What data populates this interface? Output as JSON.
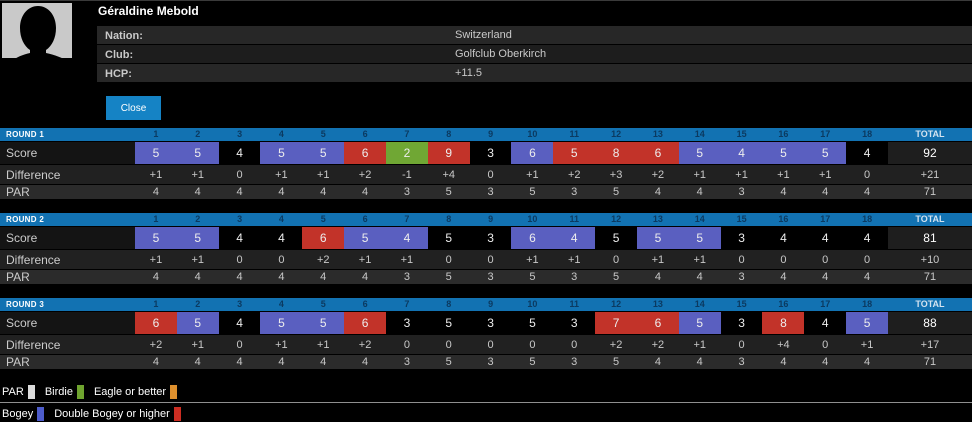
{
  "player": {
    "name": "Géraldine Mebold",
    "info": [
      {
        "label": "Nation:",
        "value": "Switzerland"
      },
      {
        "label": "Club:",
        "value": "Golfclub Oberkirch"
      },
      {
        "label": "HCP:",
        "value": "+11.5"
      }
    ],
    "close_button": "Close"
  },
  "scorecard": {
    "holes": [
      "1",
      "2",
      "3",
      "4",
      "5",
      "6",
      "7",
      "8",
      "9",
      "10",
      "11",
      "12",
      "13",
      "14",
      "15",
      "16",
      "17",
      "18"
    ],
    "total_header": "TOTAL",
    "row_labels": {
      "score": "Score",
      "difference": "Difference",
      "par": "PAR"
    },
    "rounds": [
      {
        "name": "ROUND 1",
        "scores": [
          5,
          5,
          4,
          5,
          5,
          6,
          2,
          9,
          3,
          6,
          5,
          8,
          6,
          5,
          4,
          5,
          5,
          4
        ],
        "differences": [
          "+1",
          "+1",
          "0",
          "+1",
          "+1",
          "+2",
          "-1",
          "+4",
          "0",
          "+1",
          "+2",
          "+3",
          "+2",
          "+1",
          "+1",
          "+1",
          "+1",
          "0"
        ],
        "pars": [
          4,
          4,
          4,
          4,
          4,
          4,
          3,
          5,
          3,
          5,
          3,
          5,
          4,
          4,
          3,
          4,
          4,
          4
        ],
        "total_score": "92",
        "total_difference": "+21",
        "total_par": "71"
      },
      {
        "name": "ROUND 2",
        "scores": [
          5,
          5,
          4,
          4,
          6,
          5,
          4,
          5,
          3,
          6,
          4,
          5,
          5,
          5,
          3,
          4,
          4,
          4
        ],
        "differences": [
          "+1",
          "+1",
          "0",
          "0",
          "+2",
          "+1",
          "+1",
          "0",
          "0",
          "+1",
          "+1",
          "0",
          "+1",
          "+1",
          "0",
          "0",
          "0",
          "0"
        ],
        "pars": [
          4,
          4,
          4,
          4,
          4,
          4,
          3,
          5,
          3,
          5,
          3,
          5,
          4,
          4,
          3,
          4,
          4,
          4
        ],
        "total_score": "81",
        "total_difference": "+10",
        "total_par": "71"
      },
      {
        "name": "ROUND 3",
        "scores": [
          6,
          5,
          4,
          5,
          5,
          6,
          3,
          5,
          3,
          5,
          3,
          7,
          6,
          5,
          3,
          8,
          4,
          5
        ],
        "differences": [
          "+2",
          "+1",
          "0",
          "+1",
          "+1",
          "+2",
          "0",
          "0",
          "0",
          "0",
          "0",
          "+2",
          "+2",
          "+1",
          "0",
          "+4",
          "0",
          "+1"
        ],
        "pars": [
          4,
          4,
          4,
          4,
          4,
          4,
          3,
          5,
          3,
          5,
          3,
          5,
          4,
          4,
          3,
          4,
          4,
          4
        ],
        "total_score": "88",
        "total_difference": "+17",
        "total_par": "71"
      }
    ]
  },
  "legend": {
    "rows": [
      {
        "items": [
          {
            "label": "PAR",
            "color": "#dcdcdc"
          },
          {
            "label": "Birdie",
            "color": "#6fa42f"
          },
          {
            "label": "Eagle or better",
            "color": "#dd8f2d"
          }
        ]
      },
      {
        "items": [
          {
            "label": "Bogey",
            "color": "#4d5ccb"
          },
          {
            "label": "Double Bogey or higher",
            "color": "#cc2d22"
          }
        ]
      }
    ]
  },
  "colors": {
    "header_bar": "#1272b2",
    "close_button": "#1583c5",
    "cell_par": "#000000",
    "cell_bogey": "#5a5fc0",
    "cell_double": "#c23329",
    "cell_birdie": "#70a734",
    "cell_eagle": "#dd8f2d"
  }
}
